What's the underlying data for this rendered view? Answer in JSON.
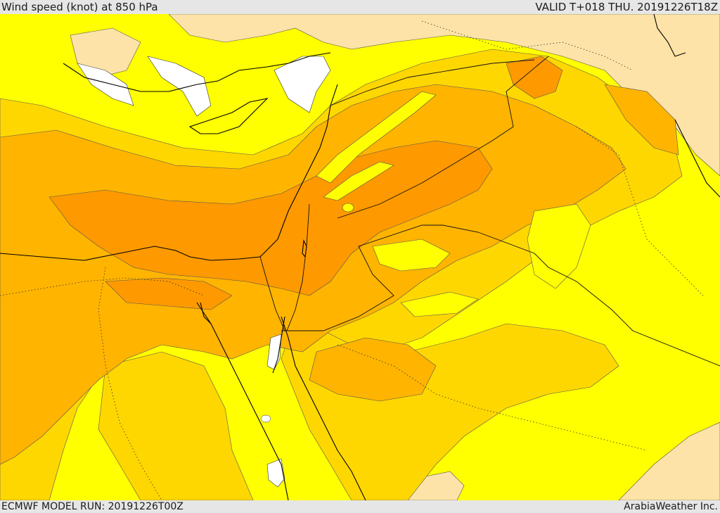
{
  "header": {
    "title": "Wind speed (knot) at 850 hPa",
    "valid_time": "VALID T+018 THU. 20191226T18Z"
  },
  "footer": {
    "model_run": "ECMWF MODEL RUN: 20191226T00Z",
    "credit": "ArabiaWeather Inc."
  },
  "colors": {
    "band_light_yellow": "#ffff00",
    "band_yellow_gold": "#ffd700",
    "band_orange_gold": "#ffb400",
    "band_orange": "#ff9900",
    "band_pale_sand": "#fde3a7",
    "land_no_data": "#ffffff",
    "coastline": "#000000",
    "border_dotted": "#333333"
  }
}
